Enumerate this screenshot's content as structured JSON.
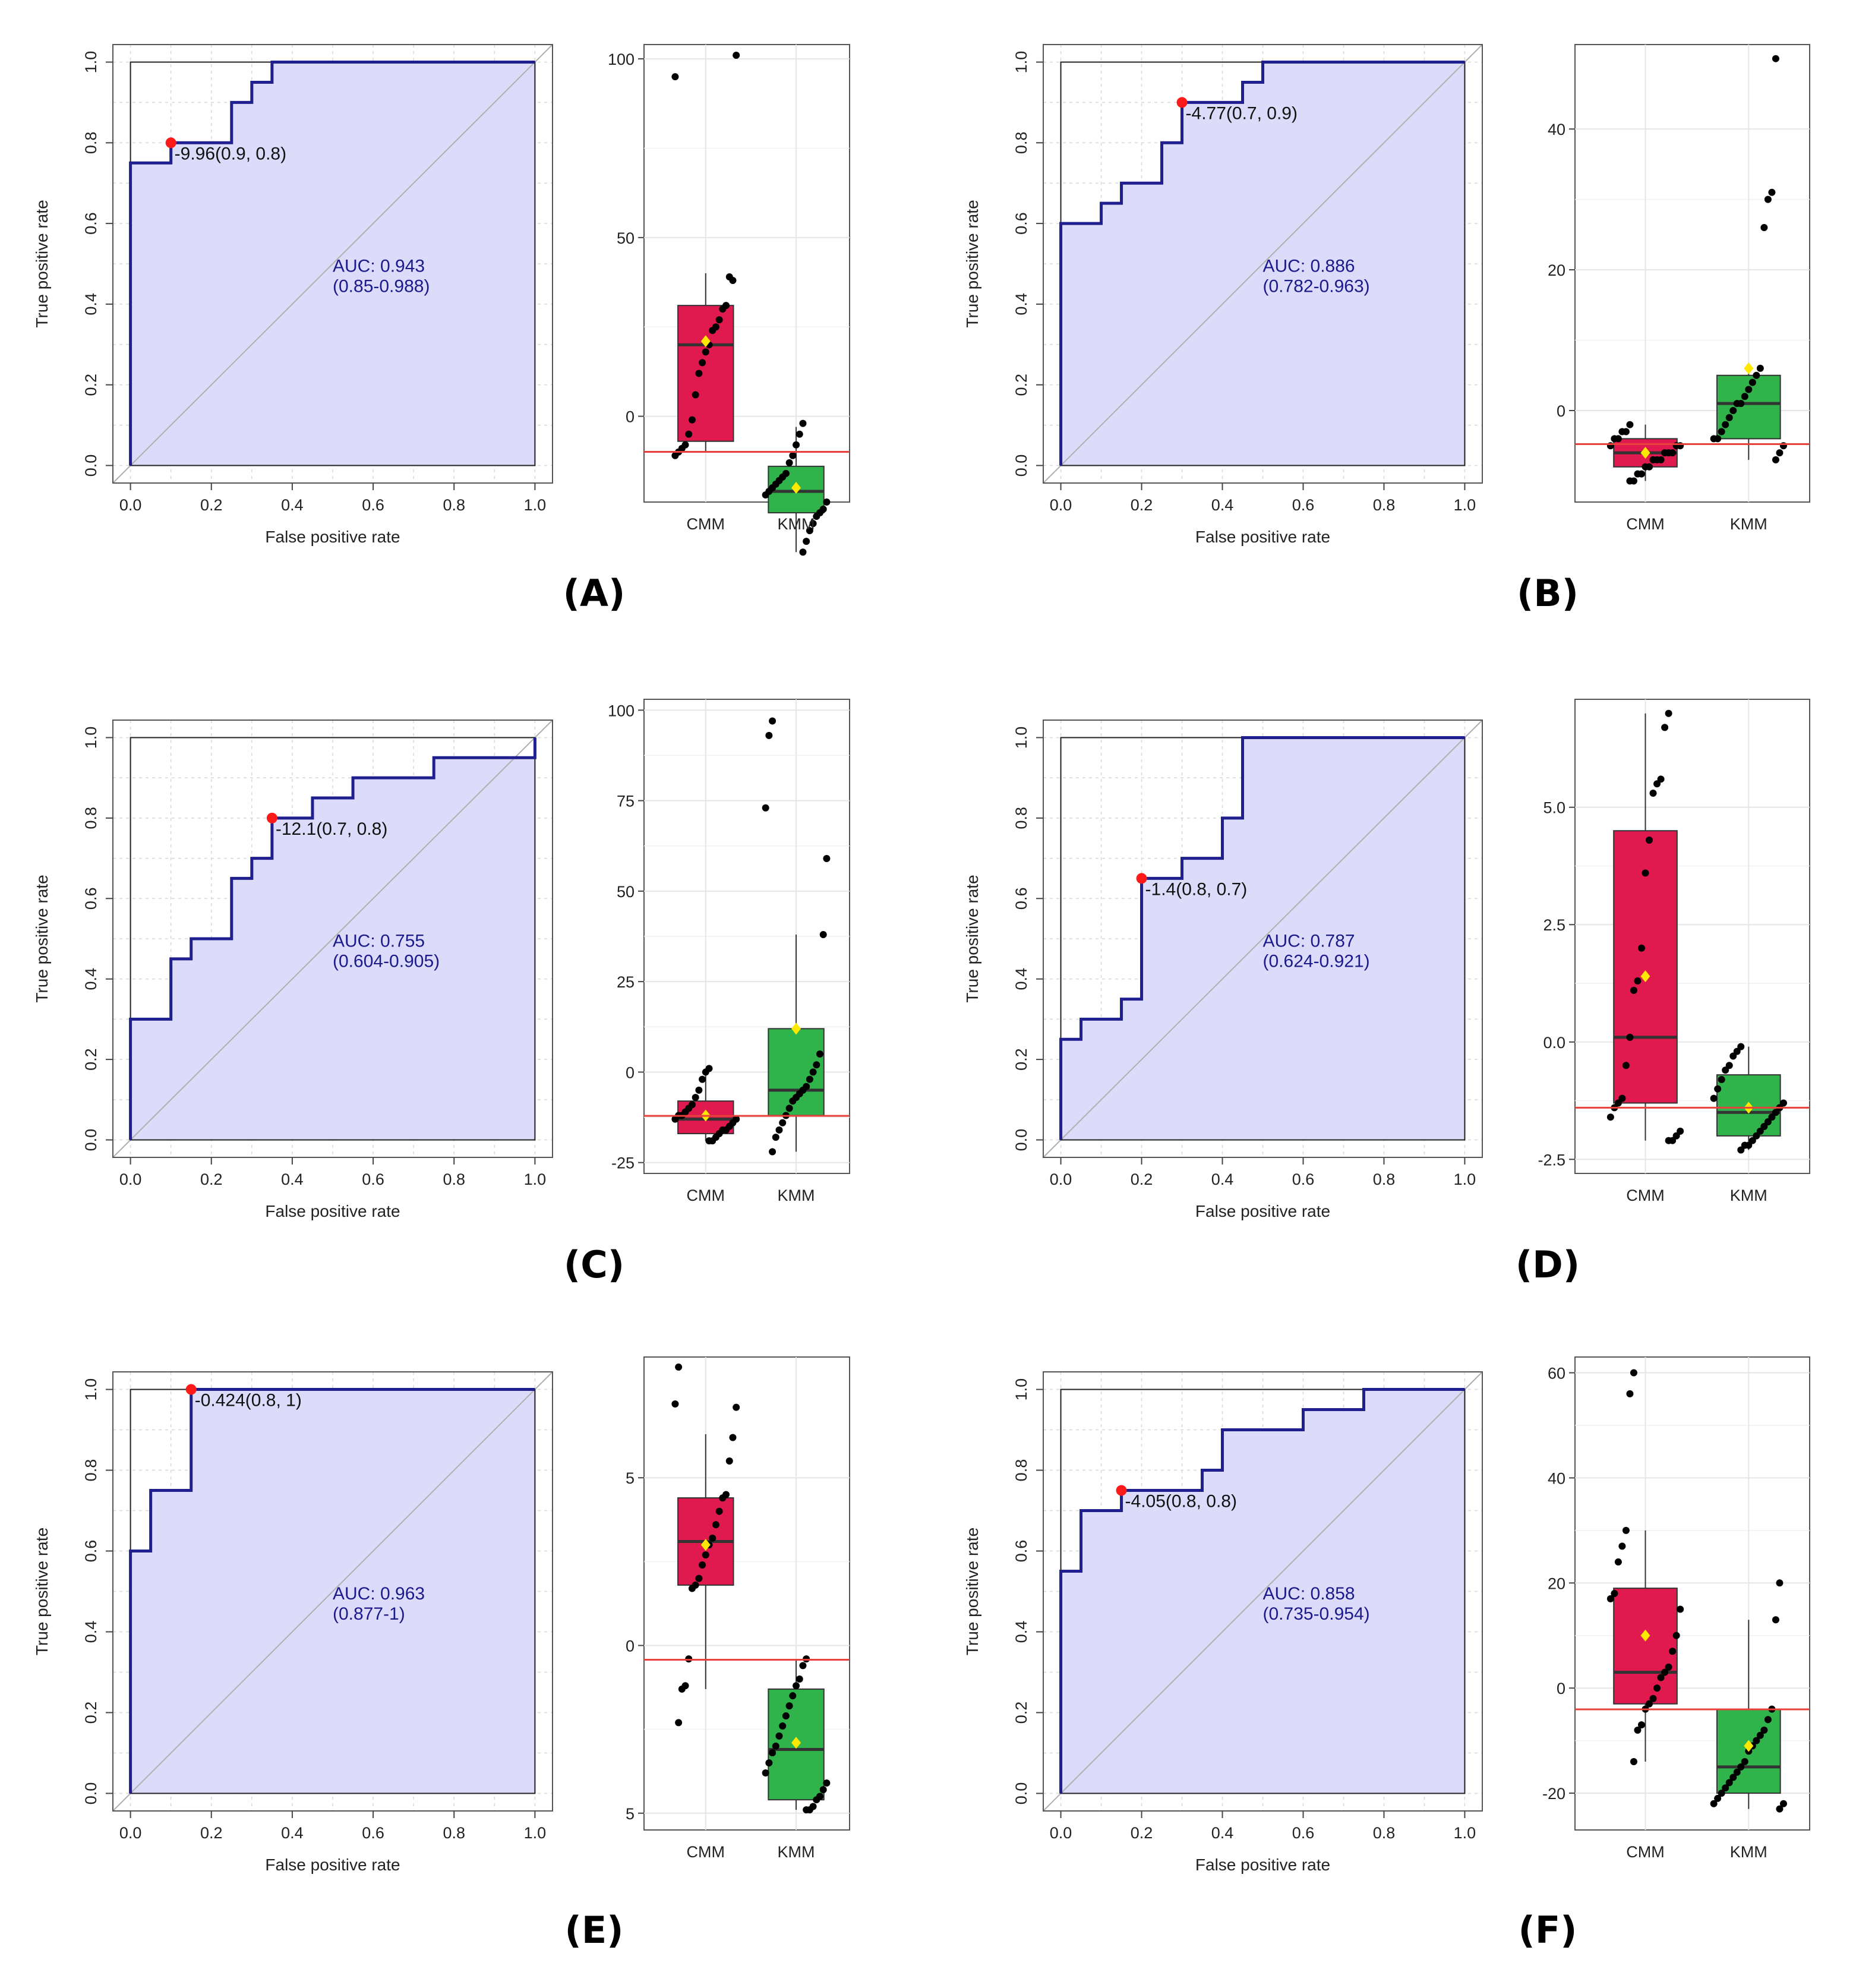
{
  "style": {
    "roc_fill": "#dcdcfa",
    "roc_line": "#1f1f8f",
    "diag": "#b0b0b0",
    "cmm_box": "#e0194f",
    "kmm_box": "#2fb34a",
    "cutoff_line": "#e8403a",
    "cut_point": "#ff1a1a",
    "mean_marker": "#ffe800",
    "grid": "#d8d8d8"
  },
  "chart_data": [
    {
      "panel": "(A)",
      "type": "line",
      "xlabel": "False positive rate",
      "ylabel": "True positive rate",
      "xticks": [
        "0.0",
        "0.2",
        "0.4",
        "0.6",
        "0.8",
        "1.0"
      ],
      "yticks": [
        "0.0",
        "0.2",
        "0.4",
        "0.6",
        "0.8",
        "1.0"
      ],
      "roc": {
        "x": [
          0,
          0,
          0.1,
          0.1,
          0.25,
          0.25,
          0.3,
          0.3,
          0.35,
          0.35,
          1
        ],
        "y": [
          0,
          0.75,
          0.75,
          0.8,
          0.8,
          0.9,
          0.9,
          0.95,
          0.95,
          1,
          1
        ]
      },
      "auc_line1": "AUC: 0.943",
      "auc_line2": "(0.85-0.988)",
      "cut_label": "-9.96(0.9, 0.8)",
      "cut_point": [
        0.1,
        0.8
      ],
      "box": {
        "categories": [
          "CMM",
          "KMM"
        ],
        "ylim": [
          -24,
          104
        ],
        "yticks": [
          {
            "v": 100,
            "t": "100"
          },
          {
            "v": 50,
            "t": "50"
          },
          {
            "v": 0,
            "t": "0"
          }
        ],
        "cutoff": -9.96,
        "groups": [
          {
            "name": "CMM",
            "q1": -7,
            "med": 20,
            "q3": 31,
            "lo": -10,
            "hi": 40,
            "mean": 21,
            "points": [
              95,
              101,
              38,
              39,
              31,
              30,
              27,
              25,
              24,
              20,
              18,
              15,
              12,
              6,
              -1,
              -5,
              -8,
              -9,
              -10,
              -11
            ]
          },
          {
            "name": "KMM",
            "q1": -27,
            "med": -21,
            "q3": -14,
            "lo": -38,
            "hi": -3,
            "mean": -20,
            "points": [
              -2,
              -5,
              -8,
              -11,
              -13,
              -16,
              -17,
              -18,
              -19,
              -20,
              -21,
              -22,
              -24,
              -26,
              -27,
              -28,
              -30,
              -32,
              -35,
              -38
            ]
          }
        ]
      }
    },
    {
      "panel": "(B)",
      "type": "line",
      "xlabel": "False positive rate",
      "ylabel": "True positive rate",
      "xticks": [
        "0.0",
        "0.2",
        "0.4",
        "0.6",
        "0.8",
        "1.0"
      ],
      "yticks": [
        "0.0",
        "0.2",
        "0.4",
        "0.6",
        "0.8",
        "1.0"
      ],
      "roc": {
        "x": [
          0,
          0,
          0.1,
          0.1,
          0.15,
          0.15,
          0.25,
          0.25,
          0.3,
          0.3,
          0.45,
          0.45,
          0.5,
          0.5,
          1
        ],
        "y": [
          0,
          0.6,
          0.6,
          0.65,
          0.65,
          0.7,
          0.7,
          0.8,
          0.8,
          0.9,
          0.9,
          0.95,
          0.95,
          1,
          1
        ]
      },
      "auc_line1": "AUC: 0.886",
      "auc_line2": "(0.782-0.963)",
      "cut_label": "-4.77(0.7, 0.9)",
      "cut_point": [
        0.3,
        0.9
      ],
      "box": {
        "categories": [
          "CMM",
          "KMM"
        ],
        "ylim": [
          -13,
          52
        ],
        "yticks": [
          {
            "v": 40,
            "t": "40"
          },
          {
            "v": 20,
            "t": "20"
          },
          {
            "v": 0,
            "t": "0"
          }
        ],
        "cutoff": -4.77,
        "groups": [
          {
            "name": "CMM",
            "q1": -8,
            "med": -6,
            "q3": -4,
            "lo": -10,
            "hi": -2,
            "mean": -6,
            "points": [
              -2,
              -3,
              -3,
              -4,
              -4,
              -5,
              -5,
              -5,
              -6,
              -6,
              -6,
              -7,
              -7,
              -7,
              -8,
              -8,
              -9,
              -9,
              -10,
              -10
            ]
          },
          {
            "name": "KMM",
            "q1": -4,
            "med": 1,
            "q3": 5,
            "lo": -7,
            "hi": 6,
            "mean": 6,
            "points": [
              50,
              31,
              30,
              26,
              6,
              5,
              4,
              3,
              2,
              1,
              1,
              0,
              -1,
              -2,
              -3,
              -4,
              -4,
              -5,
              -6,
              -7
            ]
          }
        ]
      }
    },
    {
      "panel": "(C)",
      "type": "line",
      "xlabel": "False positive rate",
      "ylabel": "True positive rate",
      "xticks": [
        "0.0",
        "0.2",
        "0.4",
        "0.6",
        "0.8",
        "1.0"
      ],
      "yticks": [
        "0.0",
        "0.2",
        "0.4",
        "0.6",
        "0.8",
        "1.0"
      ],
      "roc": {
        "x": [
          0,
          0,
          0.1,
          0.1,
          0.15,
          0.15,
          0.25,
          0.25,
          0.3,
          0.3,
          0.35,
          0.35,
          0.45,
          0.45,
          0.55,
          0.55,
          0.75,
          0.75,
          1,
          1
        ],
        "y": [
          0,
          0.3,
          0.3,
          0.45,
          0.45,
          0.5,
          0.5,
          0.65,
          0.65,
          0.7,
          0.7,
          0.8,
          0.8,
          0.85,
          0.85,
          0.9,
          0.9,
          0.95,
          0.95,
          1
        ]
      },
      "auc_line1": "AUC: 0.755",
      "auc_line2": "(0.604-0.905)",
      "cut_label": "-12.1(0.7, 0.8)",
      "cut_point": [
        0.35,
        0.8
      ],
      "box": {
        "categories": [
          "CMM",
          "KMM"
        ],
        "ylim": [
          -28,
          103
        ],
        "yticks": [
          {
            "v": 100,
            "t": "100"
          },
          {
            "v": 75,
            "t": "75"
          },
          {
            "v": 50,
            "t": "50"
          },
          {
            "v": 25,
            "t": "25"
          },
          {
            "v": 0,
            "t": "0"
          },
          {
            "v": -25,
            "t": "-25"
          }
        ],
        "cutoff": -12.1,
        "groups": [
          {
            "name": "CMM",
            "q1": -17,
            "med": -13,
            "q3": -8,
            "lo": -19,
            "hi": 1,
            "mean": -12,
            "points": [
              1,
              0,
              -2,
              -5,
              -7,
              -9,
              -10,
              -11,
              -12,
              -12,
              -13,
              -13,
              -14,
              -15,
              -16,
              -16,
              -17,
              -18,
              -19,
              -19
            ]
          },
          {
            "name": "KMM",
            "q1": -12,
            "med": -5,
            "q3": 12,
            "lo": -22,
            "hi": 38,
            "mean": 12,
            "points": [
              97,
              93,
              73,
              59,
              38,
              5,
              2,
              0,
              -2,
              -4,
              -5,
              -6,
              -7,
              -8,
              -10,
              -12,
              -14,
              -16,
              -18,
              -22
            ]
          }
        ]
      }
    },
    {
      "panel": "(D)",
      "type": "line",
      "xlabel": "False positive rate",
      "ylabel": "True positive rate",
      "xticks": [
        "0.0",
        "0.2",
        "0.4",
        "0.6",
        "0.8",
        "1.0"
      ],
      "yticks": [
        "0.0",
        "0.2",
        "0.4",
        "0.6",
        "0.8",
        "1.0"
      ],
      "roc": {
        "x": [
          0,
          0,
          0.05,
          0.05,
          0.15,
          0.15,
          0.2,
          0.2,
          0.3,
          0.3,
          0.4,
          0.4,
          0.45,
          0.45,
          1
        ],
        "y": [
          0,
          0.25,
          0.25,
          0.3,
          0.3,
          0.35,
          0.35,
          0.65,
          0.65,
          0.7,
          0.7,
          0.8,
          0.8,
          1,
          1
        ]
      },
      "auc_line1": "AUC: 0.787",
      "auc_line2": "(0.624-0.921)",
      "cut_label": "-1.4(0.8, 0.7)",
      "cut_point": [
        0.2,
        0.65
      ],
      "box": {
        "categories": [
          "CMM",
          "KMM"
        ],
        "ylim": [
          -2.8,
          7.3
        ],
        "yticks": [
          {
            "v": 5,
            "t": "5.0"
          },
          {
            "v": 2.5,
            "t": "2.5"
          },
          {
            "v": 0,
            "t": "0.0"
          },
          {
            "v": -2.5,
            "t": "-2.5"
          }
        ],
        "cutoff": -1.4,
        "groups": [
          {
            "name": "CMM",
            "q1": -1.3,
            "med": 0.1,
            "q3": 4.5,
            "lo": -2.1,
            "hi": 7,
            "mean": 1.4,
            "points": [
              7,
              6.7,
              5.6,
              5.5,
              5.3,
              4.3,
              3.6,
              2.0,
              1.3,
              1.1,
              0.1,
              -0.5,
              -1.2,
              -1.3,
              -1.4,
              -1.6,
              -1.9,
              -2.0,
              -2.1,
              -2.1
            ]
          },
          {
            "name": "KMM",
            "q1": -2.0,
            "med": -1.5,
            "q3": -0.7,
            "lo": -2.3,
            "hi": -0.1,
            "mean": -1.4,
            "points": [
              -0.1,
              -0.2,
              -0.3,
              -0.5,
              -0.6,
              -0.8,
              -1.0,
              -1.2,
              -1.3,
              -1.4,
              -1.5,
              -1.6,
              -1.7,
              -1.8,
              -1.9,
              -2.0,
              -2.1,
              -2.2,
              -2.2,
              -2.3
            ]
          }
        ]
      }
    },
    {
      "panel": "(E)",
      "type": "line",
      "xlabel": "False positive rate",
      "ylabel": "True positive rate",
      "xticks": [
        "0.0",
        "0.2",
        "0.4",
        "0.6",
        "0.8",
        "1.0"
      ],
      "yticks": [
        "0.0",
        "0.2",
        "0.4",
        "0.6",
        "0.8",
        "1.0"
      ],
      "roc": {
        "x": [
          0,
          0,
          0.05,
          0.05,
          0.15,
          0.15,
          1
        ],
        "y": [
          0,
          0.6,
          0.6,
          0.75,
          0.75,
          1,
          1
        ]
      },
      "auc_line1": "AUC: 0.963",
      "auc_line2": "(0.877-1)",
      "cut_label": "-0.424(0.8, 1)",
      "cut_point": [
        0.15,
        1
      ],
      "box": {
        "categories": [
          "CMM",
          "KMM"
        ],
        "ylim": [
          -5.5,
          8.6
        ],
        "yticks": [
          {
            "v": 5,
            "t": "5"
          },
          {
            "v": 0,
            "t": "0"
          },
          {
            "v": -5,
            "t": "5"
          }
        ],
        "cutoff": -0.424,
        "groups": [
          {
            "name": "CMM",
            "q1": 1.8,
            "med": 3.1,
            "q3": 4.4,
            "lo": -1.3,
            "hi": 6.3,
            "mean": 3.0,
            "points": [
              8.3,
              7.2,
              7.1,
              6.2,
              5.5,
              4.5,
              4.4,
              4.0,
              3.6,
              3.2,
              3.0,
              2.7,
              2.4,
              2.0,
              1.8,
              1.7,
              -0.4,
              -1.2,
              -1.3,
              -2.3
            ]
          },
          {
            "name": "KMM",
            "q1": -4.6,
            "med": -3.1,
            "q3": -1.3,
            "lo": -4.9,
            "hi": -0.4,
            "mean": -2.9,
            "points": [
              -0.4,
              -0.6,
              -1.0,
              -1.2,
              -1.5,
              -1.8,
              -2.1,
              -2.4,
              -2.7,
              -3.0,
              -3.2,
              -3.5,
              -3.8,
              -4.1,
              -4.3,
              -4.5,
              -4.6,
              -4.8,
              -4.9,
              -4.9
            ]
          }
        ]
      }
    },
    {
      "panel": "(F)",
      "type": "line",
      "xlabel": "False positive rate",
      "ylabel": "True positive rate",
      "xticks": [
        "0.0",
        "0.2",
        "0.4",
        "0.6",
        "0.8",
        "1.0"
      ],
      "yticks": [
        "0.0",
        "0.2",
        "0.4",
        "0.6",
        "0.8",
        "1.0"
      ],
      "roc": {
        "x": [
          0,
          0,
          0.05,
          0.05,
          0.15,
          0.15,
          0.35,
          0.35,
          0.4,
          0.4,
          0.6,
          0.6,
          0.75,
          0.75,
          1
        ],
        "y": [
          0,
          0.55,
          0.55,
          0.7,
          0.7,
          0.75,
          0.75,
          0.8,
          0.8,
          0.9,
          0.9,
          0.95,
          0.95,
          1,
          1
        ]
      },
      "auc_line1": "AUC: 0.858",
      "auc_line2": "(0.735-0.954)",
      "cut_label": "-4.05(0.8, 0.8)",
      "cut_point": [
        0.15,
        0.75
      ],
      "box": {
        "categories": [
          "CMM",
          "KMM"
        ],
        "ylim": [
          -27,
          63
        ],
        "yticks": [
          {
            "v": 60,
            "t": "60"
          },
          {
            "v": 40,
            "t": "40"
          },
          {
            "v": 20,
            "t": "20"
          },
          {
            "v": 0,
            "t": "0"
          },
          {
            "v": -20,
            "t": "-20"
          }
        ],
        "cutoff": -4.05,
        "groups": [
          {
            "name": "CMM",
            "q1": -3,
            "med": 3,
            "q3": 19,
            "lo": -14,
            "hi": 30,
            "mean": 10,
            "points": [
              60,
              56,
              30,
              27,
              24,
              18,
              17,
              15,
              10,
              7,
              4,
              3,
              2,
              0,
              -2,
              -3,
              -4,
              -7,
              -8,
              -14
            ]
          },
          {
            "name": "KMM",
            "q1": -20,
            "med": -15,
            "q3": -4,
            "lo": -23,
            "hi": 13,
            "mean": -11,
            "points": [
              20,
              13,
              -4,
              -6,
              -8,
              -9,
              -10,
              -11,
              -12,
              -14,
              -15,
              -16,
              -17,
              -18,
              -19,
              -20,
              -21,
              -22,
              -22,
              -23
            ]
          }
        ]
      }
    }
  ]
}
